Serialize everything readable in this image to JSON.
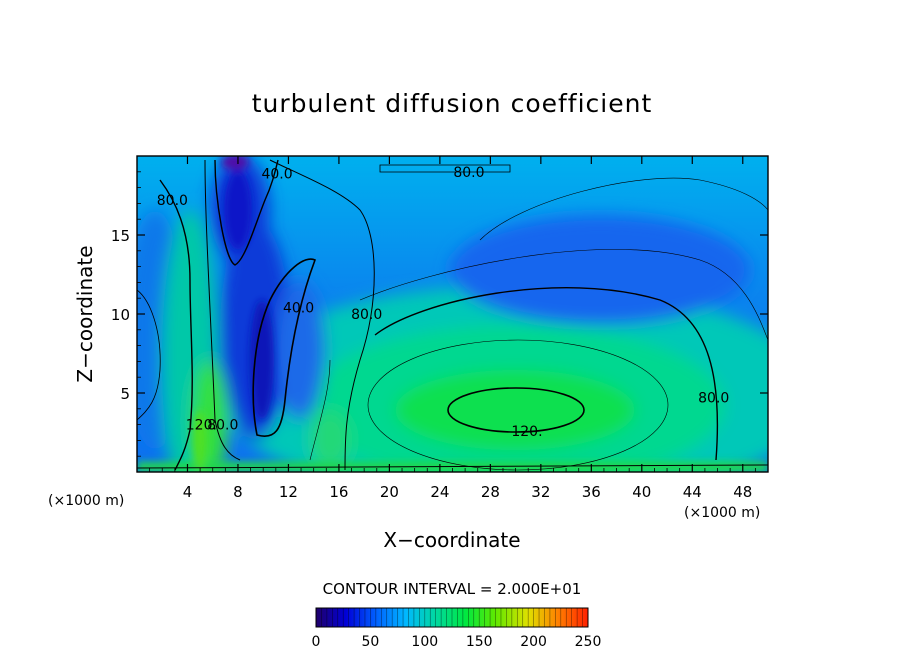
{
  "chart_data": {
    "type": "heatmap",
    "title": "turbulent diffusion coefficient",
    "xlabel": "X−coordinate",
    "ylabel": "Z−coordinate",
    "x_unit_label_left": "(×1000 m)",
    "x_unit_label_right": "(×1000 m)",
    "xlim": [
      0,
      50
    ],
    "ylim": [
      0,
      20
    ],
    "xticks": [
      4,
      8,
      12,
      16,
      20,
      24,
      28,
      32,
      36,
      40,
      44,
      48
    ],
    "yticks": [
      5,
      10,
      15
    ],
    "contour_interval_text": "CONTOUR INTERVAL = 2.000E+01",
    "contour_labels": [
      {
        "text": "40.0",
        "x": 11.1,
        "y": 18.9
      },
      {
        "text": "80.0",
        "x": 26.3,
        "y": 19.0
      },
      {
        "text": "80.0",
        "x": 2.8,
        "y": 17.2
      },
      {
        "text": "40.0",
        "x": 12.8,
        "y": 10.4
      },
      {
        "text": "80.0",
        "x": 18.2,
        "y": 10.0
      },
      {
        "text": "120.",
        "x": 30.9,
        "y": 2.6
      },
      {
        "text": "80.0",
        "x": 45.7,
        "y": 4.7
      },
      {
        "text": "120.",
        "x": 5.1,
        "y": 3.0
      },
      {
        "text": "80.0",
        "x": 6.8,
        "y": 3.0
      }
    ],
    "colorbar": {
      "min": 0,
      "max": 250,
      "ticks": [
        0,
        50,
        100,
        150,
        200,
        250
      ],
      "colors": [
        "#20006a",
        "#0000d8",
        "#0060ff",
        "#00b8ff",
        "#00d8a0",
        "#00e840",
        "#60e800",
        "#e0e000",
        "#ff8000",
        "#ff2000"
      ]
    }
  }
}
